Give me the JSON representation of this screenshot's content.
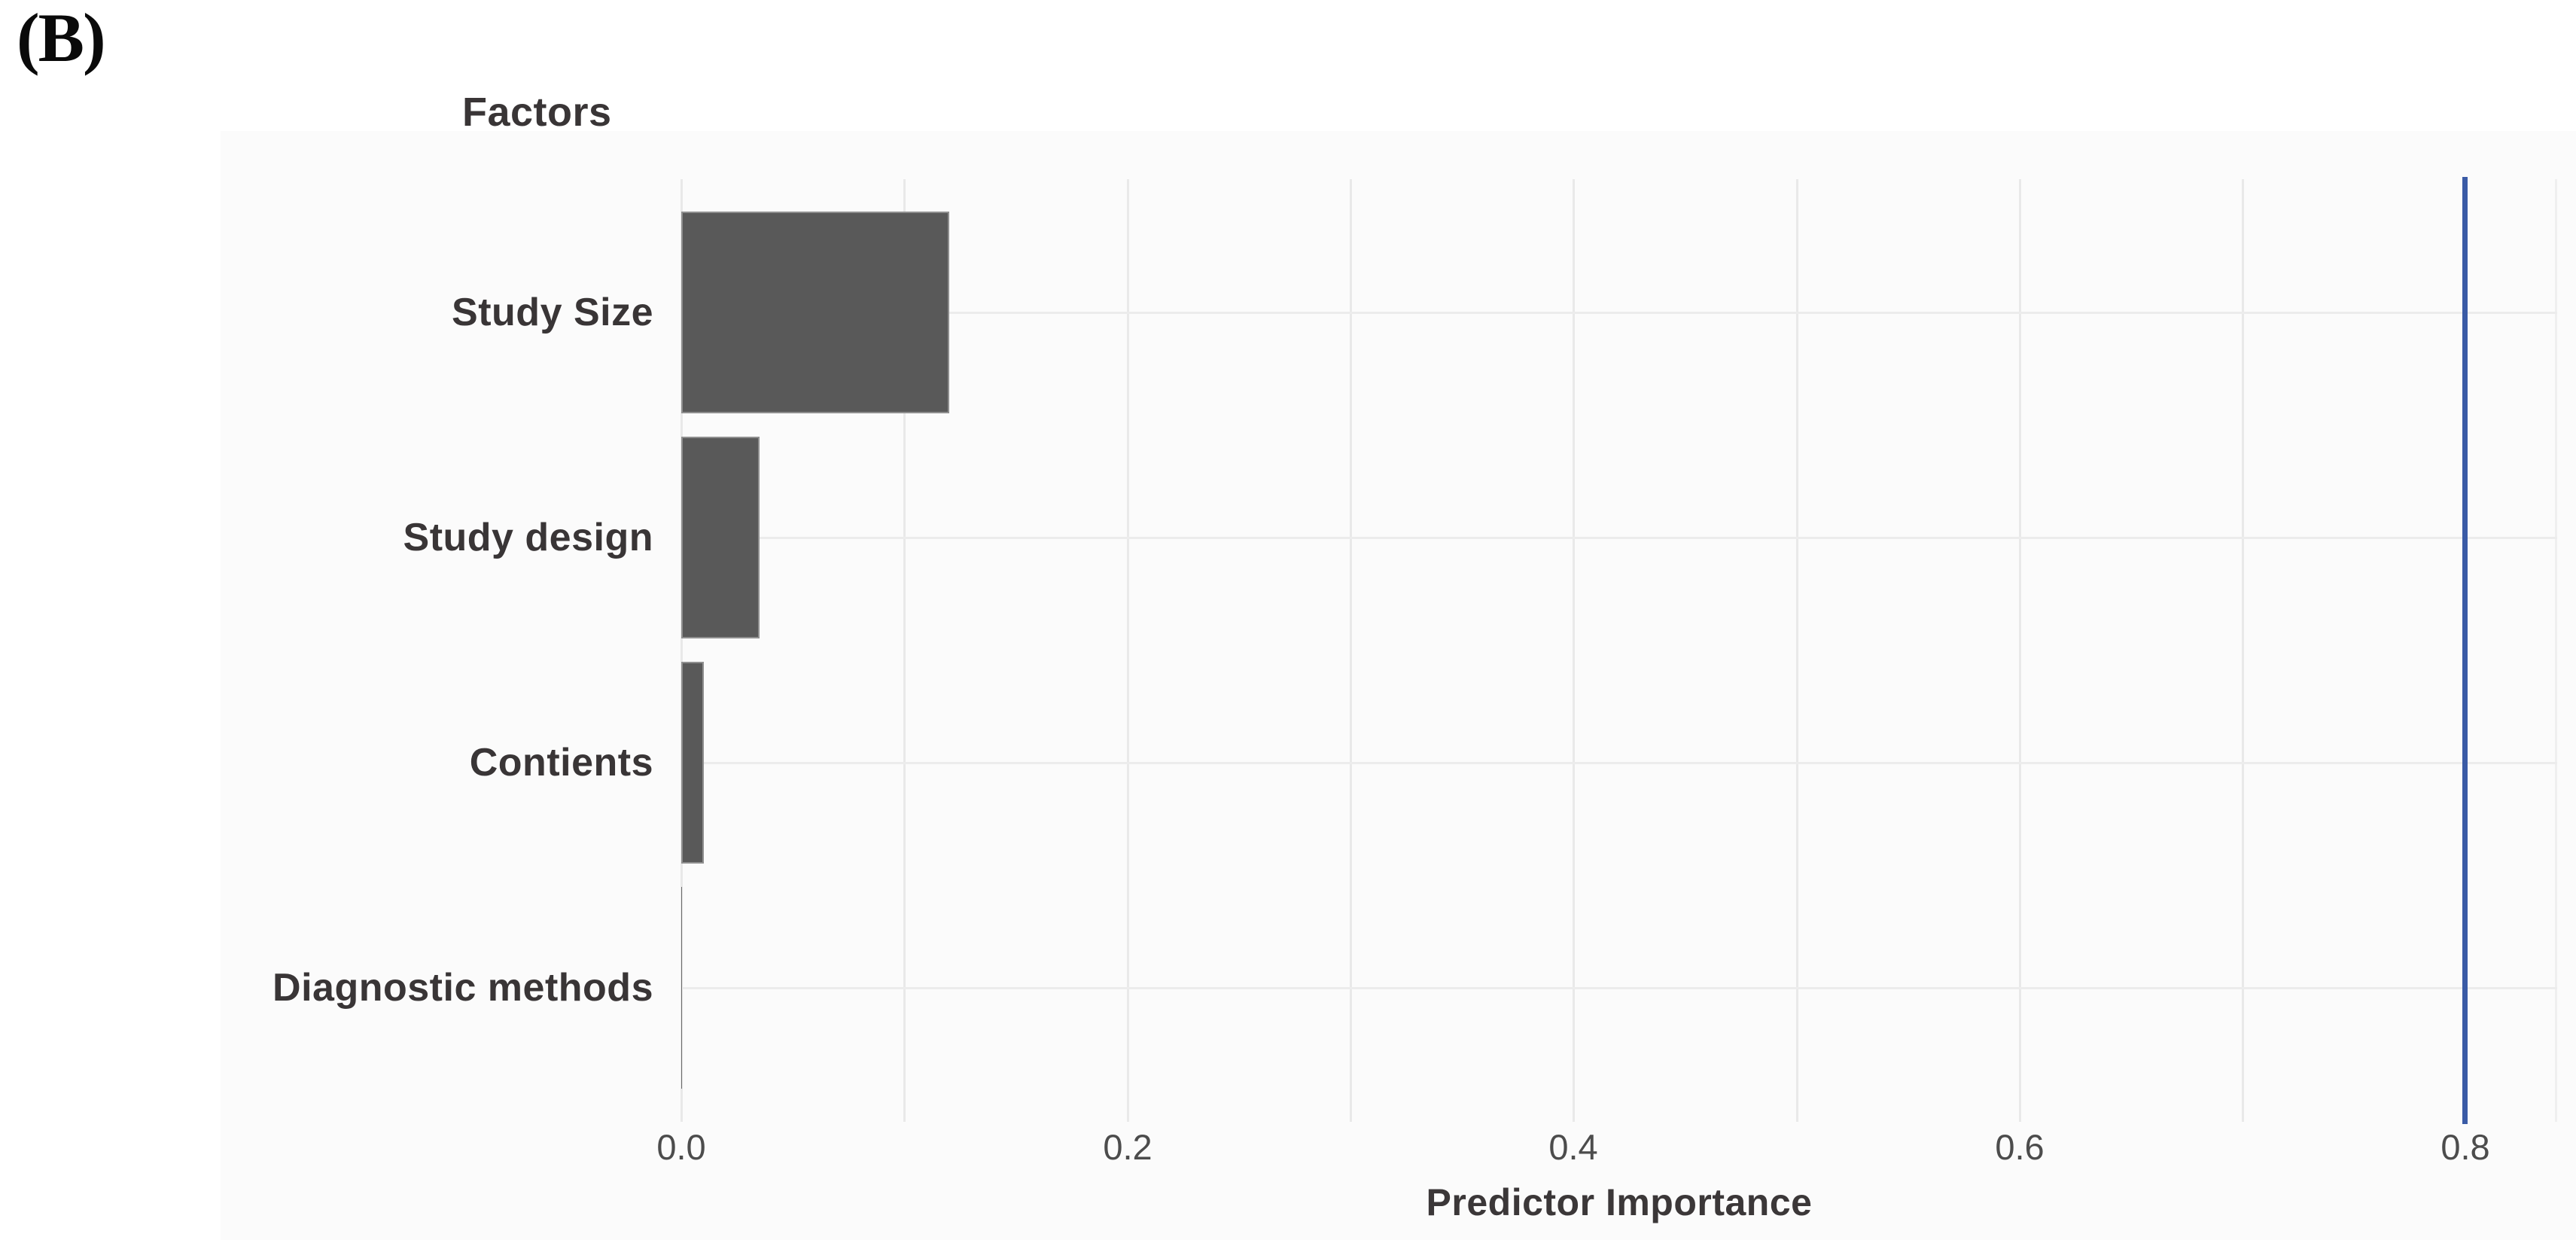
{
  "panel_label": "(B)",
  "chart_data": {
    "type": "bar",
    "orientation": "horizontal",
    "title": "Factors",
    "xlabel": "Predictor Importance",
    "categories": [
      "Study Size",
      "Study design",
      "Contients",
      "Diagnostic methods"
    ],
    "values": [
      0.12,
      0.035,
      0.01,
      0.0005
    ],
    "x_ticks": [
      {
        "value": 0.0,
        "label": "0.0"
      },
      {
        "value": 0.2,
        "label": "0.2"
      },
      {
        "value": 0.4,
        "label": "0.4"
      },
      {
        "value": 0.6,
        "label": "0.6"
      },
      {
        "value": 0.8,
        "label": "0.8"
      }
    ],
    "xlim": [
      0.0,
      0.841
    ],
    "grid_step": 0.1,
    "grid_on": true,
    "reference_line_x": 0.8,
    "legend": null,
    "colors": {
      "bar_fill": "#595959",
      "bar_edge": "#8f8f8f",
      "reference_line": "#3a5ba6",
      "gridline": "#e9e9e9",
      "text": "#393536",
      "tick_text": "#4c4c4c"
    }
  }
}
